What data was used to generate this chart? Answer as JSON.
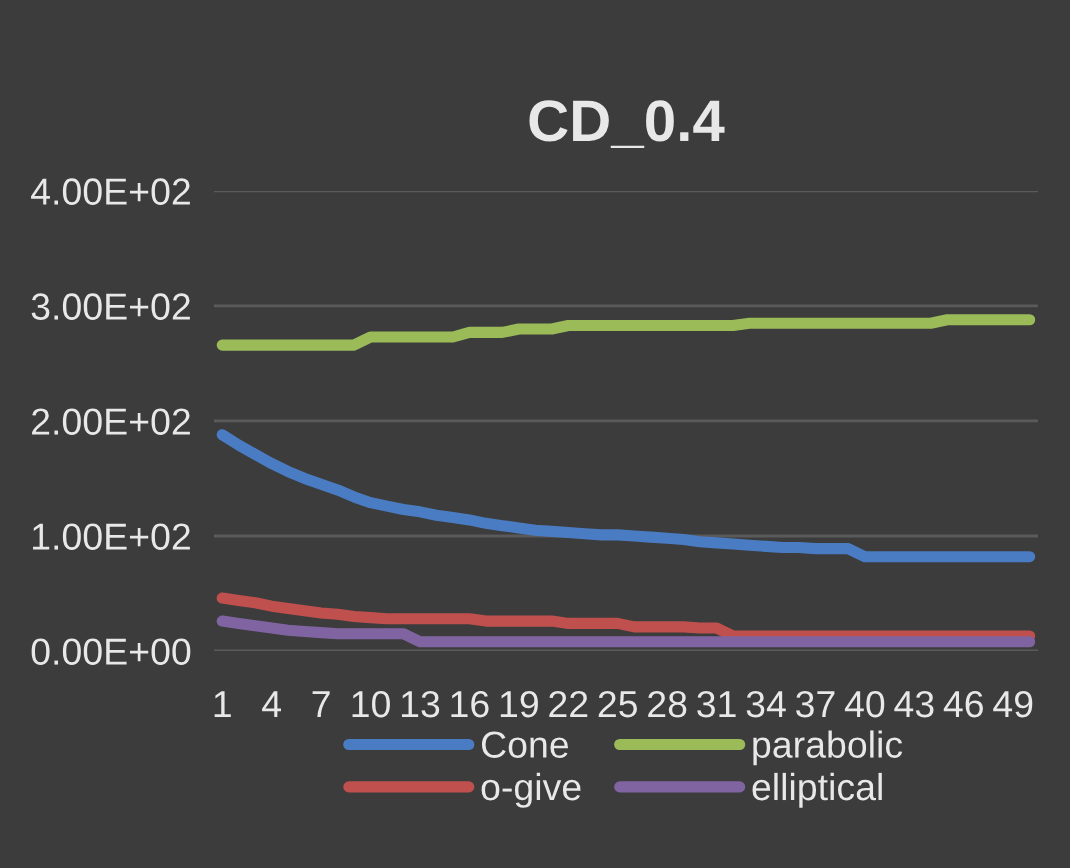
{
  "chart_data": {
    "type": "line",
    "title": "CD_0.4",
    "categories": [
      "1",
      null,
      null,
      "4",
      null,
      null,
      "7",
      null,
      null,
      "10",
      null,
      null,
      "13",
      null,
      null,
      "16",
      null,
      null,
      "19",
      null,
      null,
      "22",
      null,
      null,
      "25",
      null,
      null,
      "28",
      null,
      null,
      "31",
      null,
      null,
      "34",
      null,
      null,
      "37",
      null,
      null,
      "40",
      null,
      null,
      "43",
      null,
      null,
      "46",
      null,
      null,
      "49",
      null
    ],
    "series": [
      {
        "name": "Cone",
        "color": "#4a7cc4",
        "values": [
          188,
          179,
          171,
          163,
          156,
          150,
          145,
          140,
          134,
          129,
          126,
          123,
          121,
          118,
          116,
          114,
          111,
          109,
          107,
          105,
          104,
          103,
          102,
          101,
          101,
          100,
          99,
          98,
          97,
          95,
          94,
          93,
          92,
          91,
          90,
          90,
          89,
          89,
          89,
          82,
          82,
          82,
          82,
          82,
          82,
          82,
          82,
          82,
          82,
          82
        ]
      },
      {
        "name": "o-give",
        "color": "#c0504d",
        "values": [
          46,
          44,
          42,
          39,
          37,
          35,
          33,
          32,
          30,
          29,
          28,
          28,
          28,
          28,
          28,
          28,
          26,
          26,
          26,
          26,
          26,
          24,
          24,
          24,
          24,
          21,
          21,
          21,
          21,
          20,
          20,
          13,
          13,
          13,
          13,
          13,
          13,
          13,
          13,
          13,
          13,
          13,
          13,
          13,
          13,
          13,
          13,
          13,
          13,
          13
        ]
      },
      {
        "name": "parabolic",
        "color": "#9bbb59",
        "values": [
          266,
          266,
          266,
          266,
          266,
          266,
          266,
          266,
          266,
          273,
          273,
          273,
          273,
          273,
          273,
          277,
          277,
          277,
          280,
          280,
          280,
          283,
          283,
          283,
          283,
          283,
          283,
          283,
          283,
          283,
          283,
          283,
          285,
          285,
          285,
          285,
          285,
          285,
          285,
          285,
          285,
          285,
          285,
          285,
          288,
          288,
          288,
          288,
          288,
          288
        ]
      },
      {
        "name": "elliptical",
        "color": "#8064a2",
        "values": [
          26,
          24,
          22,
          20,
          18,
          17,
          16,
          15,
          15,
          15,
          15,
          15,
          8,
          8,
          8,
          8,
          8,
          8,
          8,
          8,
          8,
          8,
          8,
          8,
          8,
          8,
          8,
          8,
          8,
          8,
          8,
          8,
          8,
          8,
          8,
          8,
          8,
          8,
          8,
          8,
          8,
          8,
          8,
          8,
          8,
          8,
          8,
          8,
          8,
          8
        ]
      }
    ],
    "ylim": [
      0,
      400
    ],
    "yticks": [
      {
        "value": 0,
        "label": "0.00E+00"
      },
      {
        "value": 100,
        "label": "1.00E+02"
      },
      {
        "value": 200,
        "label": "2.00E+02"
      },
      {
        "value": 300,
        "label": "3.00E+02"
      },
      {
        "value": 400,
        "label": "4.00E+02"
      }
    ],
    "grid": "y",
    "legend": "bottom",
    "marker": "none",
    "line_style": "solid"
  }
}
